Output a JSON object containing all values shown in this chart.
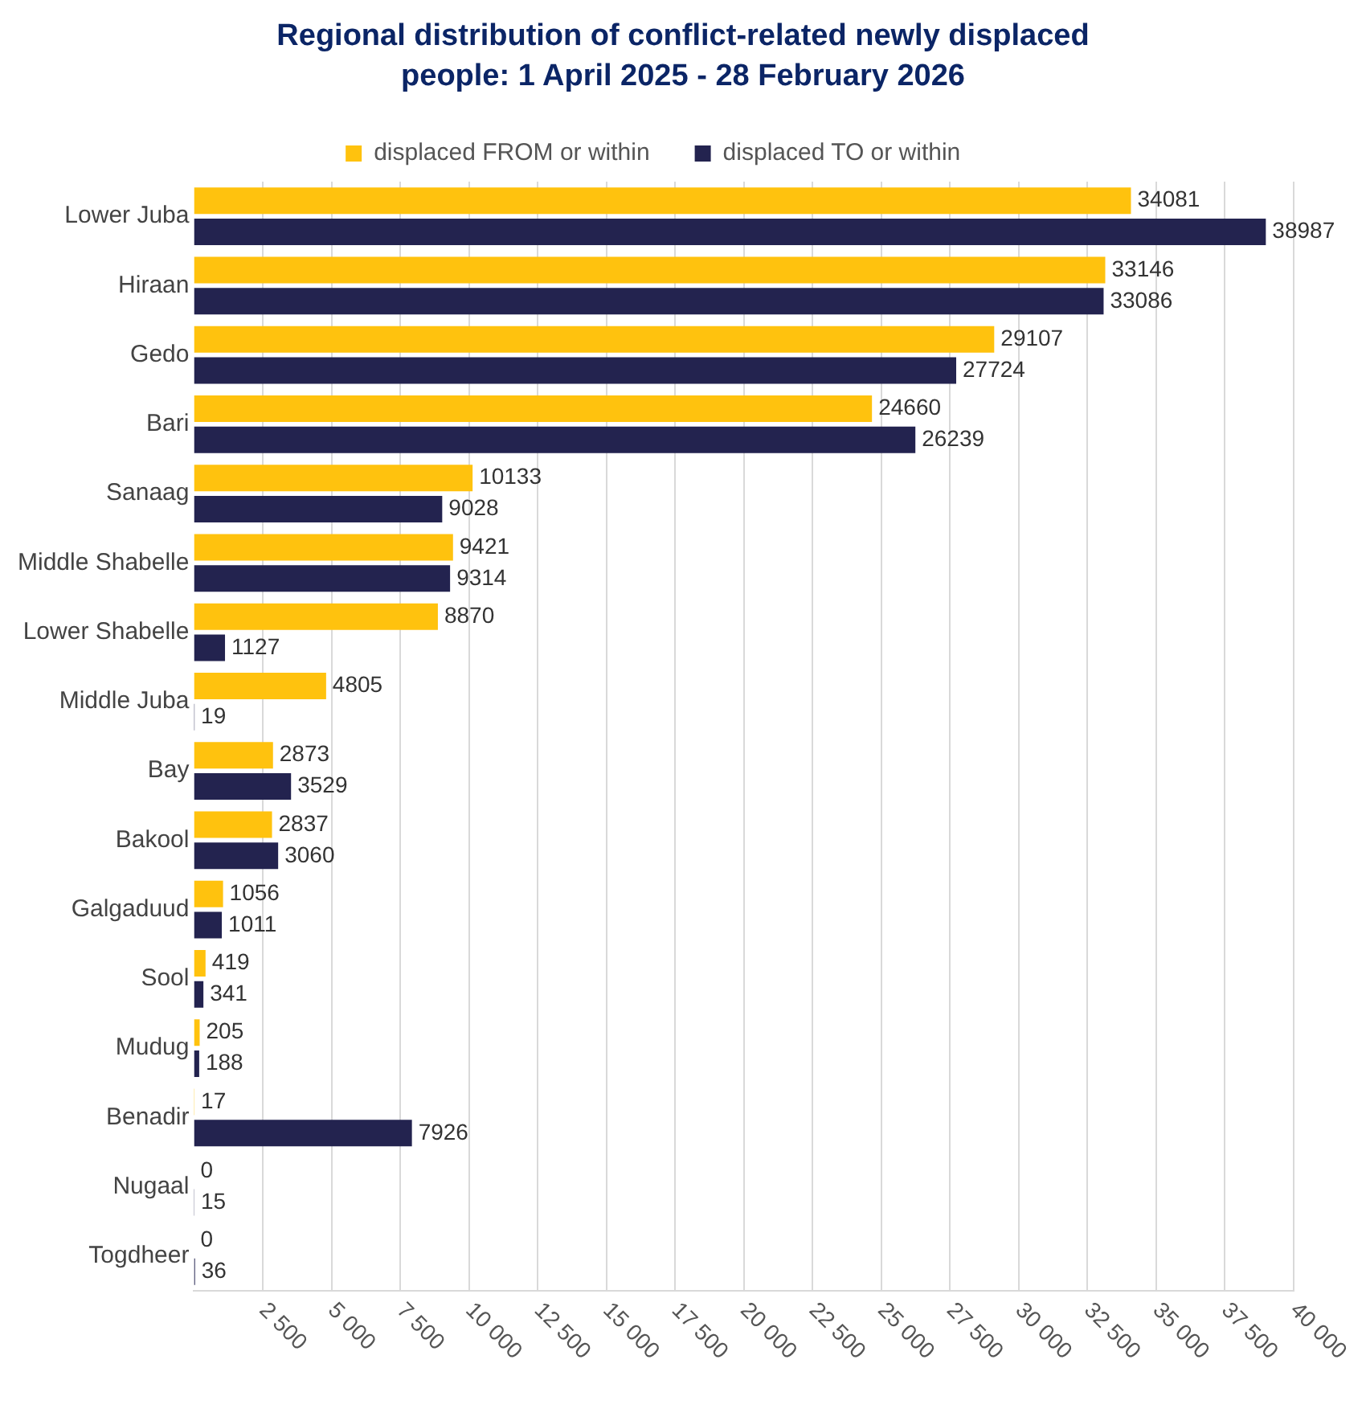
{
  "chart_data": {
    "type": "bar",
    "orientation": "horizontal",
    "title": "Regional distribution of conflict-related newly displaced people: 1 April 2025 - 28 February 2026",
    "categories": [
      "Lower Juba",
      "Hiraan",
      "Gedo",
      "Bari",
      "Sanaag",
      "Middle Shabelle",
      "Lower Shabelle",
      "Middle Juba",
      "Bay",
      "Bakool",
      "Galgaduud",
      "Sool",
      "Mudug",
      "Benadir",
      "Nugaal",
      "Togdheer"
    ],
    "series": [
      {
        "name": "displaced FROM or within",
        "color": "#ffc20e",
        "values": [
          34081,
          33146,
          29107,
          24660,
          10133,
          9421,
          8870,
          4805,
          2873,
          2837,
          1056,
          419,
          205,
          17,
          0,
          0
        ]
      },
      {
        "name": "displaced TO or within",
        "color": "#23234f",
        "values": [
          38987,
          33086,
          27724,
          26239,
          9028,
          9314,
          1127,
          19,
          3529,
          3060,
          1011,
          341,
          188,
          7926,
          15,
          36
        ]
      }
    ],
    "xlim": [
      0,
      40000
    ],
    "xticks": [
      {
        "value": 2500,
        "label": "2 500"
      },
      {
        "value": 5000,
        "label": "5 000"
      },
      {
        "value": 7500,
        "label": "7 500"
      },
      {
        "value": 10000,
        "label": "10 000"
      },
      {
        "value": 12500,
        "label": "12 500"
      },
      {
        "value": 15000,
        "label": "15 000"
      },
      {
        "value": 17500,
        "label": "17 500"
      },
      {
        "value": 20000,
        "label": "20 000"
      },
      {
        "value": 22500,
        "label": "22 500"
      },
      {
        "value": 25000,
        "label": "25 000"
      },
      {
        "value": 27500,
        "label": "27 500"
      },
      {
        "value": 30000,
        "label": "30 000"
      },
      {
        "value": 32500,
        "label": "32 500"
      },
      {
        "value": 35000,
        "label": "35 000"
      },
      {
        "value": 37500,
        "label": "37 500"
      },
      {
        "value": 40000,
        "label": "40 000"
      }
    ],
    "grid": "x",
    "legend": "top",
    "data_labels": true
  }
}
